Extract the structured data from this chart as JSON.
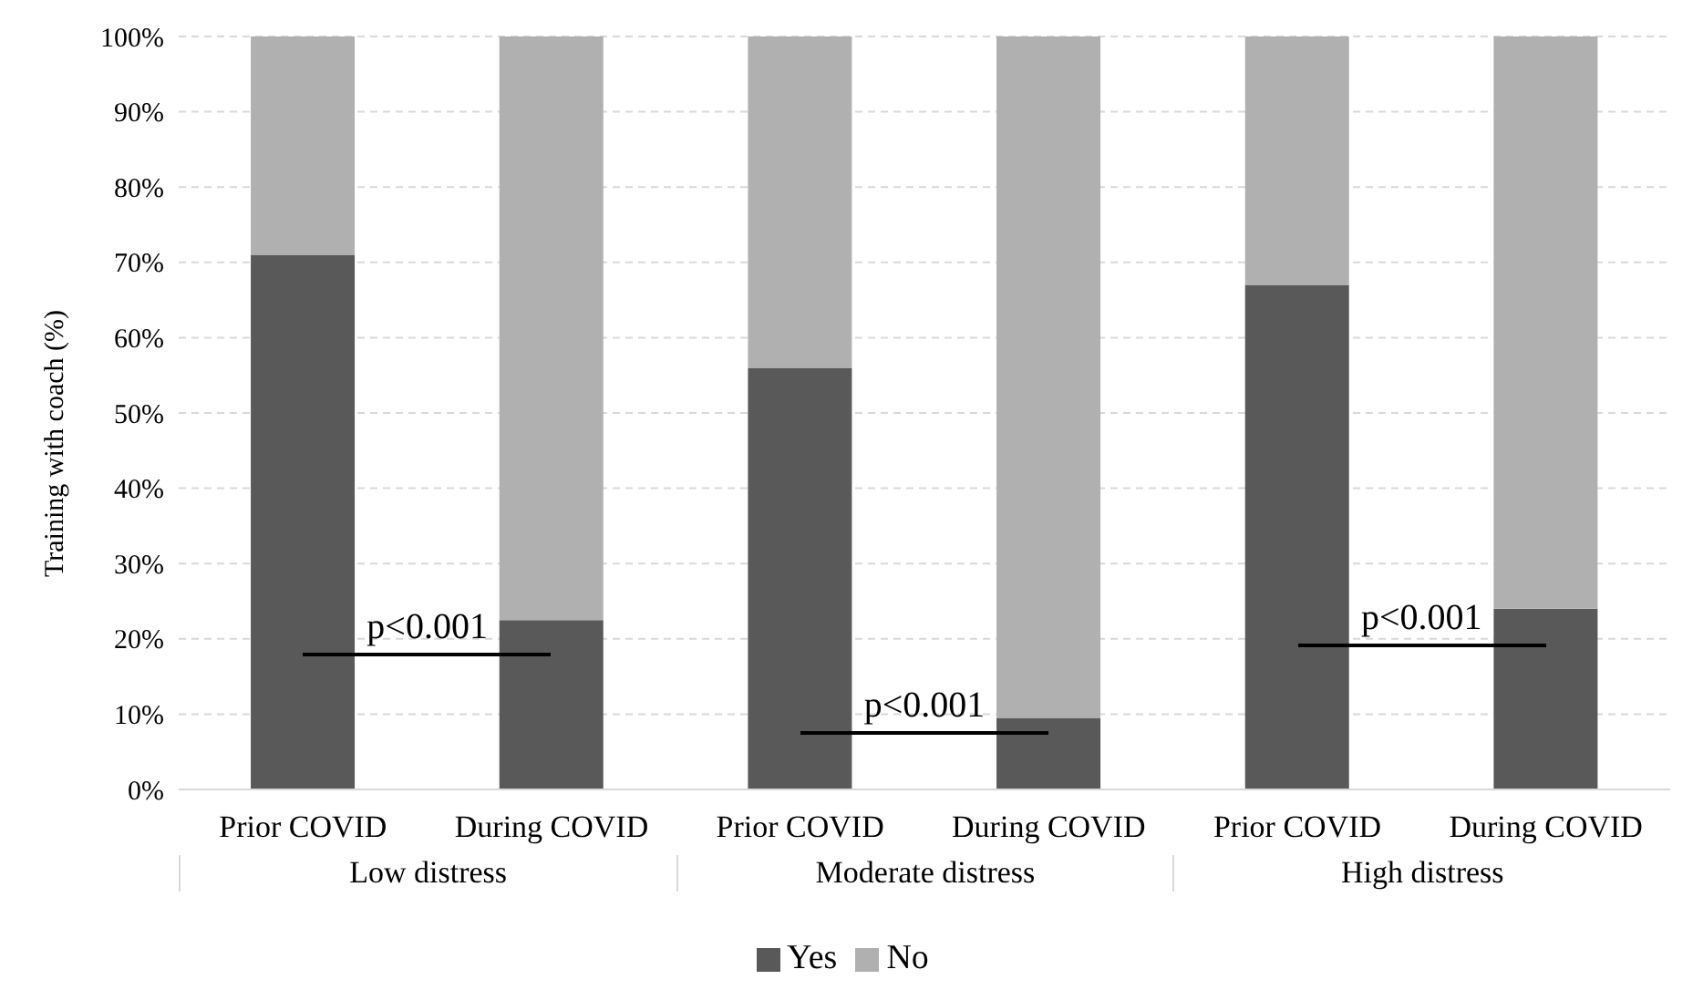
{
  "chart_data": {
    "type": "bar",
    "stacked": true,
    "ylabel": "Training with coach (%)",
    "categories": [
      "Prior COVID",
      "During COVID",
      "Prior COVID",
      "During COVID",
      "Prior COVID",
      "During COVID"
    ],
    "series": [
      {
        "name": "Yes",
        "color": "#595959",
        "values": [
          71,
          22.5,
          56,
          9.5,
          67,
          24
        ]
      },
      {
        "name": "No",
        "color": "#b0b0b0",
        "values": [
          29,
          77.5,
          44,
          90.5,
          33,
          76
        ]
      }
    ],
    "ylim": [
      0,
      100
    ],
    "yticks": [
      {
        "value": 0,
        "label": "0%"
      },
      {
        "value": 10,
        "label": "10%"
      },
      {
        "value": 20,
        "label": "20%"
      },
      {
        "value": 30,
        "label": "30%"
      },
      {
        "value": 40,
        "label": "40%"
      },
      {
        "value": 50,
        "label": "50%"
      },
      {
        "value": 60,
        "label": "60%"
      },
      {
        "value": 70,
        "label": "70%"
      },
      {
        "value": 80,
        "label": "80%"
      },
      {
        "value": 90,
        "label": "90%"
      },
      {
        "value": 100,
        "label": "100%"
      }
    ],
    "grid": "y",
    "legend": "bottom",
    "annotations": [
      "Low distress",
      "Moderate distress",
      "High distress",
      "p<0.001",
      "p<0.001",
      "p<0.001"
    ]
  }
}
